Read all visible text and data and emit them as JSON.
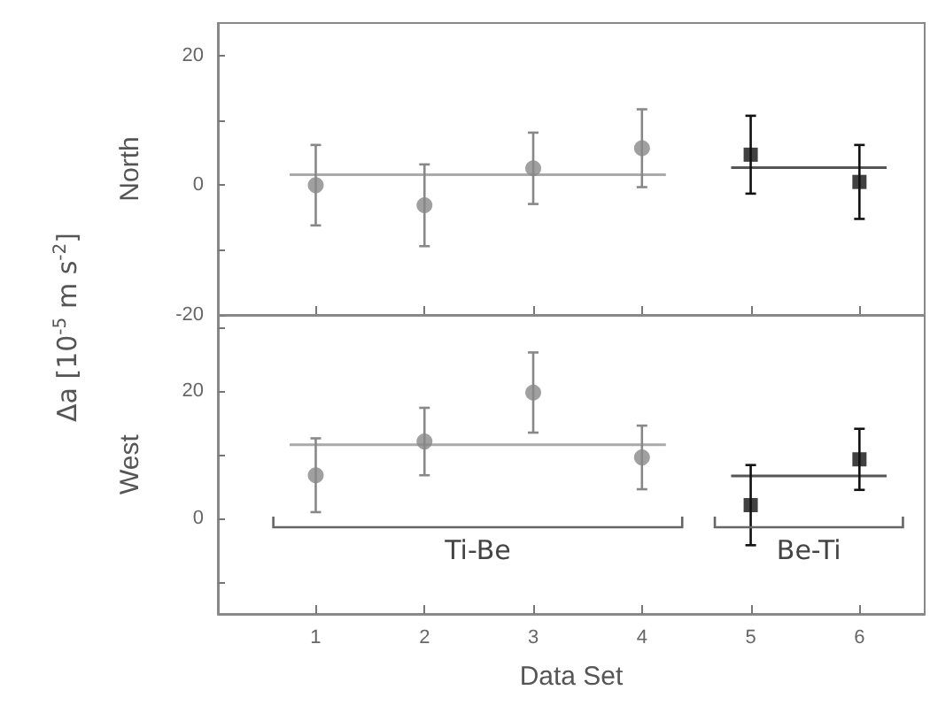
{
  "chart_data": [
    {
      "type": "scatter",
      "ylabel": "North",
      "annotations": [
        "Δa [10$^{-5}$ m s$^{-2}$]"
      ],
      "xlim": [
        0.1,
        6.6
      ],
      "xticks": [
        1,
        2,
        3,
        4,
        5,
        6
      ],
      "ylim": [
        -20,
        25
      ],
      "yticks": [
        -20,
        {
          "value": -10,
          "label": null
        },
        0,
        {
          "value": 10,
          "label": null
        },
        20
      ],
      "tick_labels": "y",
      "grid": false,
      "series": [
        {
          "marker": "circle",
          "color": "#888888",
          "x": [
            1,
            2,
            3,
            4
          ],
          "values": [
            0,
            -3.1,
            2.6,
            5.7
          ],
          "errors": [
            6.2,
            6.3,
            5.5,
            6
          ]
        },
        {
          "marker": "square",
          "color": "#111111",
          "x": [
            5,
            6
          ],
          "values": [
            4.7,
            0.5
          ],
          "errors": [
            6,
            5.7
          ]
        },
        {
          "type": "line",
          "marker": "none",
          "color": "#aaaaaa",
          "x": [
            0.76,
            4.22
          ],
          "values": [
            1.6,
            1.6
          ]
        },
        {
          "type": "line",
          "marker": "none",
          "color": "#555555",
          "x": [
            4.82,
            6.25
          ],
          "values": [
            2.7,
            2.7
          ]
        }
      ]
    },
    {
      "type": "scatter",
      "ylabel": "West",
      "xlabel": "Data Set",
      "annotations": [
        "Ti-Be",
        "Be-Ti"
      ],
      "xlim": [
        0.1,
        6.6
      ],
      "xticks": [
        1,
        2,
        3,
        4,
        5,
        6
      ],
      "ylim": [
        -15,
        32
      ],
      "yticks": [
        {
          "value": -10,
          "label": null
        },
        0,
        {
          "value": 10,
          "label": null
        },
        20,
        {
          "value": 30,
          "label": null
        }
      ],
      "grid": false,
      "series": [
        {
          "marker": "circle",
          "color": "#888888",
          "x": [
            1,
            2,
            3,
            4
          ],
          "values": [
            6.8,
            12.1,
            19.8,
            9.6
          ],
          "errors": [
            5.8,
            5.3,
            6.3,
            5
          ]
        },
        {
          "marker": "square",
          "color": "#111111",
          "x": [
            5,
            6
          ],
          "values": [
            2.1,
            9.3
          ],
          "errors": [
            6.3,
            4.8
          ]
        },
        {
          "type": "line",
          "marker": "none",
          "color": "#aaaaaa",
          "x": [
            0.76,
            4.22
          ],
          "values": [
            11.6,
            11.6
          ]
        },
        {
          "type": "line",
          "marker": "none",
          "color": "#555555",
          "x": [
            4.82,
            6.25
          ],
          "values": [
            6.7,
            6.7
          ]
        }
      ]
    }
  ]
}
